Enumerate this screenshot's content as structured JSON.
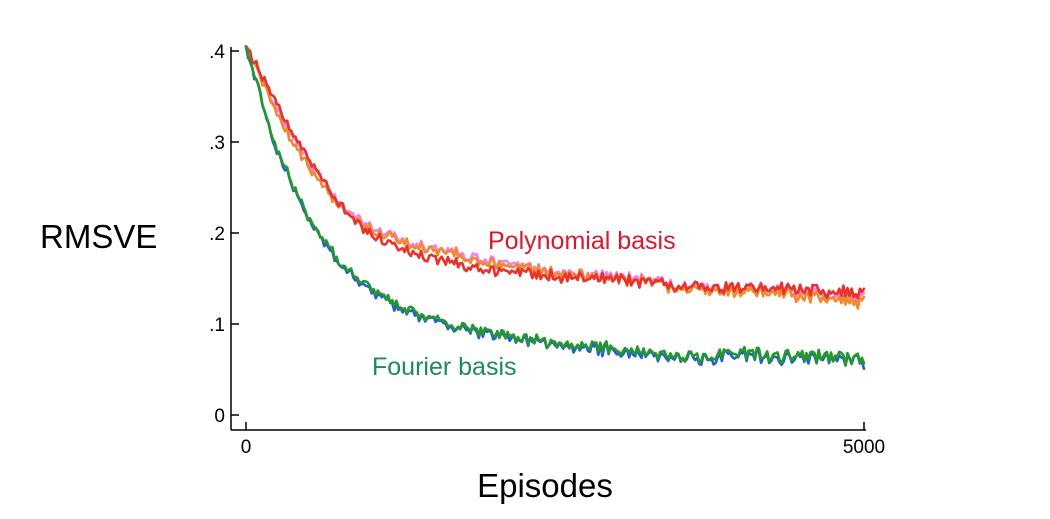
{
  "chart_data": {
    "type": "line",
    "title": "",
    "xlabel": "Episodes",
    "ylabel": "RMSVE",
    "xlim": [
      0,
      5000
    ],
    "ylim": [
      0,
      0.4
    ],
    "xticks": [
      {
        "value": 0,
        "label": "0"
      },
      {
        "value": 5000,
        "label": "5000"
      }
    ],
    "yticks": [
      {
        "value": 0,
        "label": "0"
      },
      {
        "value": 0.1,
        "label": ".1"
      },
      {
        "value": 0.2,
        "label": ".2"
      },
      {
        "value": 0.3,
        "label": ".3"
      },
      {
        "value": 0.4,
        "label": ".4"
      }
    ],
    "grid": false,
    "annotations": [
      {
        "text": "Polynomial basis",
        "color": "#d7192e"
      },
      {
        "text": "Fourier basis",
        "color": "#1d8a5a"
      }
    ],
    "series": [
      {
        "group": "polynomial",
        "color": "#ee82ee",
        "x": [
          0,
          250,
          500,
          750,
          1000,
          1250,
          1500,
          1750,
          2000,
          2250,
          2500,
          2750,
          3000,
          3250,
          3500,
          3750,
          4000,
          4250,
          4500,
          4750,
          5000
        ],
        "y": [
          0.405,
          0.335,
          0.28,
          0.232,
          0.208,
          0.192,
          0.183,
          0.177,
          0.171,
          0.163,
          0.158,
          0.155,
          0.152,
          0.148,
          0.142,
          0.14,
          0.139,
          0.138,
          0.135,
          0.133,
          0.128
        ]
      },
      {
        "group": "polynomial",
        "color": "#f08a2a",
        "x": [
          0,
          250,
          500,
          750,
          1000,
          1250,
          1500,
          1750,
          2000,
          2250,
          2500,
          2750,
          3000,
          3250,
          3500,
          3750,
          4000,
          4250,
          4500,
          4750,
          5000
        ],
        "y": [
          0.405,
          0.33,
          0.274,
          0.228,
          0.205,
          0.19,
          0.181,
          0.175,
          0.168,
          0.161,
          0.156,
          0.153,
          0.15,
          0.146,
          0.14,
          0.137,
          0.136,
          0.134,
          0.13,
          0.128,
          0.122
        ]
      },
      {
        "group": "polynomial",
        "color": "#e8322a",
        "x": [
          0,
          250,
          500,
          750,
          1000,
          1250,
          1500,
          1750,
          2000,
          2250,
          2500,
          2750,
          3000,
          3250,
          3500,
          3750,
          4000,
          4250,
          4500,
          4750,
          5000
        ],
        "y": [
          0.405,
          0.34,
          0.283,
          0.23,
          0.2,
          0.183,
          0.172,
          0.165,
          0.16,
          0.156,
          0.152,
          0.15,
          0.149,
          0.146,
          0.142,
          0.14,
          0.14,
          0.139,
          0.137,
          0.135,
          0.132
        ]
      },
      {
        "group": "fourier",
        "color": "#1f5fd6",
        "x": [
          0,
          250,
          500,
          750,
          1000,
          1250,
          1500,
          1750,
          2000,
          2250,
          2500,
          2750,
          3000,
          3250,
          3500,
          3750,
          4000,
          4250,
          4500,
          4750,
          5000
        ],
        "y": [
          0.405,
          0.29,
          0.215,
          0.168,
          0.138,
          0.117,
          0.103,
          0.095,
          0.088,
          0.082,
          0.077,
          0.074,
          0.07,
          0.066,
          0.062,
          0.063,
          0.067,
          0.063,
          0.062,
          0.061,
          0.058
        ]
      },
      {
        "group": "fourier",
        "color": "#26962e",
        "x": [
          0,
          250,
          500,
          750,
          1000,
          1250,
          1500,
          1750,
          2000,
          2250,
          2500,
          2750,
          3000,
          3250,
          3500,
          3750,
          4000,
          4250,
          4500,
          4750,
          5000
        ],
        "y": [
          0.405,
          0.292,
          0.217,
          0.17,
          0.14,
          0.119,
          0.105,
          0.097,
          0.09,
          0.084,
          0.079,
          0.076,
          0.072,
          0.068,
          0.064,
          0.065,
          0.069,
          0.065,
          0.064,
          0.063,
          0.061
        ]
      }
    ]
  }
}
